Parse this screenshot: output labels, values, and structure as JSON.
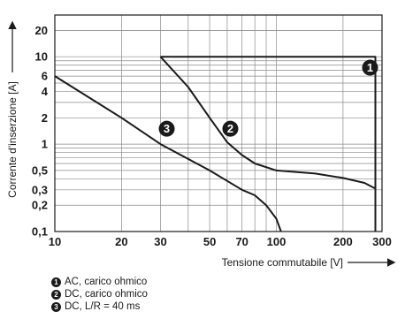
{
  "chart_data": {
    "type": "line",
    "xscale": "log",
    "yscale": "log",
    "xlim": [
      10,
      300
    ],
    "ylim": [
      0.1,
      30
    ],
    "grid": true,
    "xlabel": "Tensione commutabile [V]",
    "ylabel": "Corrente d'inserzione [A]",
    "x_ticks": [
      {
        "value": 10,
        "label": "10"
      },
      {
        "value": 20,
        "label": "20"
      },
      {
        "value": 30,
        "label": "30"
      },
      {
        "value": 50,
        "label": "50"
      },
      {
        "value": 70,
        "label": "70"
      },
      {
        "value": 100,
        "label": "100"
      },
      {
        "value": 200,
        "label": "200"
      },
      {
        "value": 300,
        "label": "300"
      }
    ],
    "y_ticks": [
      {
        "value": 0.1,
        "label": "0,1"
      },
      {
        "value": 0.2,
        "label": "0,2"
      },
      {
        "value": 0.3,
        "label": "0,3"
      },
      {
        "value": 0.5,
        "label": "0,5"
      },
      {
        "value": 1,
        "label": "1"
      },
      {
        "value": 2,
        "label": "2"
      },
      {
        "value": 4,
        "label": "4"
      },
      {
        "value": 6,
        "label": "6"
      },
      {
        "value": 10,
        "label": "10"
      },
      {
        "value": 20,
        "label": "20"
      }
    ],
    "series": [
      {
        "id": "1",
        "marker_label": "1",
        "marker_at": [
          265,
          7.5
        ],
        "points": [
          [
            30,
            10
          ],
          [
            280,
            10
          ],
          [
            280,
            0.1
          ]
        ]
      },
      {
        "id": "2",
        "marker_label": "2",
        "marker_at": [
          62,
          1.5
        ],
        "points": [
          [
            30,
            10
          ],
          [
            40,
            4.5
          ],
          [
            50,
            2
          ],
          [
            60,
            1.05
          ],
          [
            70,
            0.75
          ],
          [
            80,
            0.6
          ],
          [
            100,
            0.5
          ],
          [
            150,
            0.46
          ],
          [
            200,
            0.41
          ],
          [
            250,
            0.36
          ],
          [
            280,
            0.31
          ]
        ]
      },
      {
        "id": "3",
        "marker_label": "3",
        "marker_at": [
          32,
          1.5
        ],
        "points": [
          [
            10,
            6
          ],
          [
            20,
            2
          ],
          [
            30,
            1
          ],
          [
            50,
            0.5
          ],
          [
            70,
            0.3
          ],
          [
            80,
            0.26
          ],
          [
            90,
            0.2
          ],
          [
            100,
            0.14
          ],
          [
            105,
            0.1
          ]
        ]
      }
    ],
    "legend": [
      {
        "num": "1",
        "text": "AC, carico ohmico"
      },
      {
        "num": "2",
        "text": "DC, carico ohmico"
      },
      {
        "num": "3",
        "text": "DC, L/R = 40 ms"
      }
    ]
  }
}
